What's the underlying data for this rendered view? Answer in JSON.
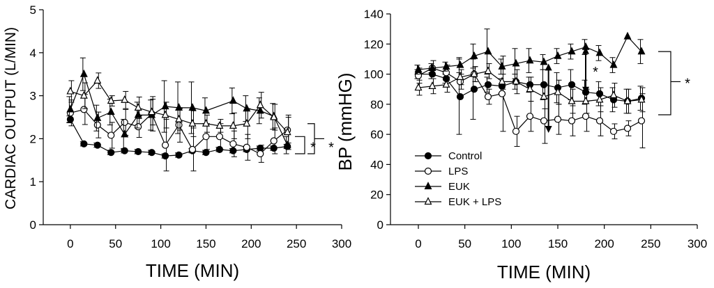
{
  "chart_data": [
    {
      "type": "line",
      "title": "",
      "xlabel": "TIME (MIN)",
      "ylabel": "CARDIAC OUTPUT (L/MIN)",
      "xlim": [
        -30,
        300
      ],
      "ylim": [
        0,
        5
      ],
      "xticks": [
        0,
        50,
        100,
        150,
        200,
        250,
        300
      ],
      "yticks": [
        0,
        1,
        2,
        3,
        4,
        5
      ],
      "significance_marks": [
        "*",
        "*"
      ],
      "series": [
        {
          "name": "Control",
          "marker": "circle-filled",
          "x": [
            0,
            15,
            30,
            45,
            60,
            75,
            90,
            105,
            120,
            135,
            150,
            165,
            180,
            195,
            210,
            225,
            240
          ],
          "y": [
            2.45,
            1.88,
            1.85,
            1.68,
            1.72,
            1.7,
            1.68,
            1.6,
            1.62,
            1.72,
            1.68,
            1.75,
            1.72,
            1.75,
            1.78,
            1.78,
            1.82
          ],
          "err": [
            0.08,
            0.05,
            0.05,
            0.05,
            0.05,
            0.05,
            0.05,
            0.05,
            0.05,
            0.05,
            0.05,
            0.05,
            0.05,
            0.05,
            0.05,
            0.05,
            0.05
          ]
        },
        {
          "name": "LPS",
          "marker": "circle-open",
          "x": [
            0,
            15,
            30,
            45,
            60,
            75,
            90,
            105,
            120,
            135,
            150,
            165,
            180,
            195,
            210,
            225,
            240
          ],
          "y": [
            2.6,
            2.68,
            2.32,
            2.08,
            2.38,
            2.28,
            2.58,
            1.85,
            2.32,
            1.75,
            2.05,
            2.05,
            1.88,
            1.8,
            1.65,
            1.95,
            2.2
          ],
          "err": [
            0.3,
            0.35,
            0.3,
            0.3,
            0.3,
            0.25,
            0.4,
            0.6,
            0.4,
            0.5,
            0.3,
            0.3,
            0.3,
            0.3,
            0.2,
            0.3,
            0.3
          ]
        },
        {
          "name": "EUK",
          "marker": "triangle-filled",
          "x": [
            0,
            15,
            30,
            45,
            60,
            75,
            90,
            105,
            120,
            135,
            150,
            180,
            195,
            210,
            225,
            240
          ],
          "y": [
            2.68,
            3.5,
            2.48,
            2.62,
            2.1,
            2.55,
            2.55,
            2.75,
            2.72,
            2.72,
            2.65,
            2.88,
            2.7,
            2.65,
            2.52,
            1.85
          ],
          "err": [
            0.3,
            0.38,
            0.3,
            0.3,
            0.35,
            0.3,
            0.35,
            0.6,
            0.6,
            0.6,
            0.3,
            0.3,
            0.3,
            0.3,
            0.3,
            0.2
          ]
        },
        {
          "name": "EUK + LPS",
          "marker": "triangle-open",
          "x": [
            0,
            15,
            30,
            45,
            60,
            75,
            90,
            105,
            120,
            135,
            150,
            165,
            180,
            195,
            210,
            225,
            240
          ],
          "y": [
            3.1,
            3.0,
            3.35,
            2.88,
            2.9,
            2.72,
            2.62,
            2.55,
            2.45,
            2.35,
            2.35,
            2.3,
            2.3,
            2.35,
            2.78,
            2.5,
            2.15
          ],
          "err": [
            0.25,
            0.3,
            0.18,
            0.12,
            0.2,
            0.25,
            0.3,
            0.3,
            0.25,
            0.3,
            0.2,
            0.15,
            0.3,
            0.35,
            0.3,
            0.3,
            0.4
          ]
        }
      ]
    },
    {
      "type": "line",
      "title": "",
      "xlabel": "TIME (MIN)",
      "ylabel": "BP (mmHG)",
      "xlim": [
        -30,
        300
      ],
      "ylim": [
        0,
        140
      ],
      "xticks": [
        0,
        50,
        100,
        150,
        200,
        250,
        300
      ],
      "yticks": [
        0,
        20,
        40,
        60,
        80,
        100,
        120,
        140
      ],
      "legend_position": "lower-left",
      "significance_marks": [
        "*",
        "*"
      ],
      "series": [
        {
          "name": "Control",
          "marker": "circle-filled",
          "x": [
            0,
            15,
            30,
            45,
            60,
            75,
            90,
            105,
            120,
            135,
            150,
            165,
            180,
            195,
            210,
            225,
            240
          ],
          "y": [
            100,
            100,
            97,
            85,
            90,
            93,
            92,
            95,
            93,
            93,
            91,
            93,
            88,
            87,
            83,
            82,
            84
          ],
          "err": [
            3,
            3,
            3,
            25,
            20,
            5,
            5,
            5,
            5,
            10,
            10,
            10,
            8,
            8,
            8,
            8,
            8
          ]
        },
        {
          "name": "LPS",
          "marker": "circle-open",
          "x": [
            0,
            15,
            30,
            45,
            60,
            75,
            90,
            105,
            120,
            135,
            150,
            165,
            180,
            195,
            210,
            225,
            240
          ],
          "y": [
            99,
            104,
            101,
            95,
            100,
            85,
            87,
            62,
            72,
            69,
            70,
            69,
            72,
            69,
            62,
            64,
            69
          ],
          "err": [
            5,
            5,
            5,
            5,
            5,
            5,
            25,
            10,
            10,
            15,
            10,
            10,
            10,
            10,
            5,
            5,
            18
          ]
        },
        {
          "name": "EUK",
          "marker": "triangle-filled",
          "x": [
            0,
            15,
            30,
            45,
            60,
            75,
            90,
            105,
            120,
            135,
            150,
            165,
            180,
            195,
            210,
            225,
            240
          ],
          "y": [
            103,
            104,
            105,
            106,
            112,
            115,
            105,
            107,
            109,
            108,
            112,
            115,
            118,
            114,
            106,
            125,
            115
          ],
          "err": [
            3,
            3,
            3,
            5,
            8,
            15,
            5,
            10,
            8,
            5,
            5,
            5,
            5,
            5,
            5,
            0,
            8
          ]
        },
        {
          "name": "EUK + LPS",
          "marker": "triangle-open",
          "x": [
            0,
            15,
            30,
            45,
            60,
            75,
            90,
            105,
            120,
            135,
            150,
            165,
            180,
            195,
            210,
            225,
            240
          ],
          "y": [
            91,
            92,
            93,
            98,
            100,
            102,
            95,
            95,
            90,
            85,
            88,
            82,
            82,
            83,
            86,
            82,
            83
          ],
          "err": [
            5,
            5,
            5,
            5,
            5,
            5,
            5,
            8,
            8,
            8,
            8,
            8,
            8,
            8,
            8,
            8,
            8
          ]
        }
      ]
    }
  ]
}
